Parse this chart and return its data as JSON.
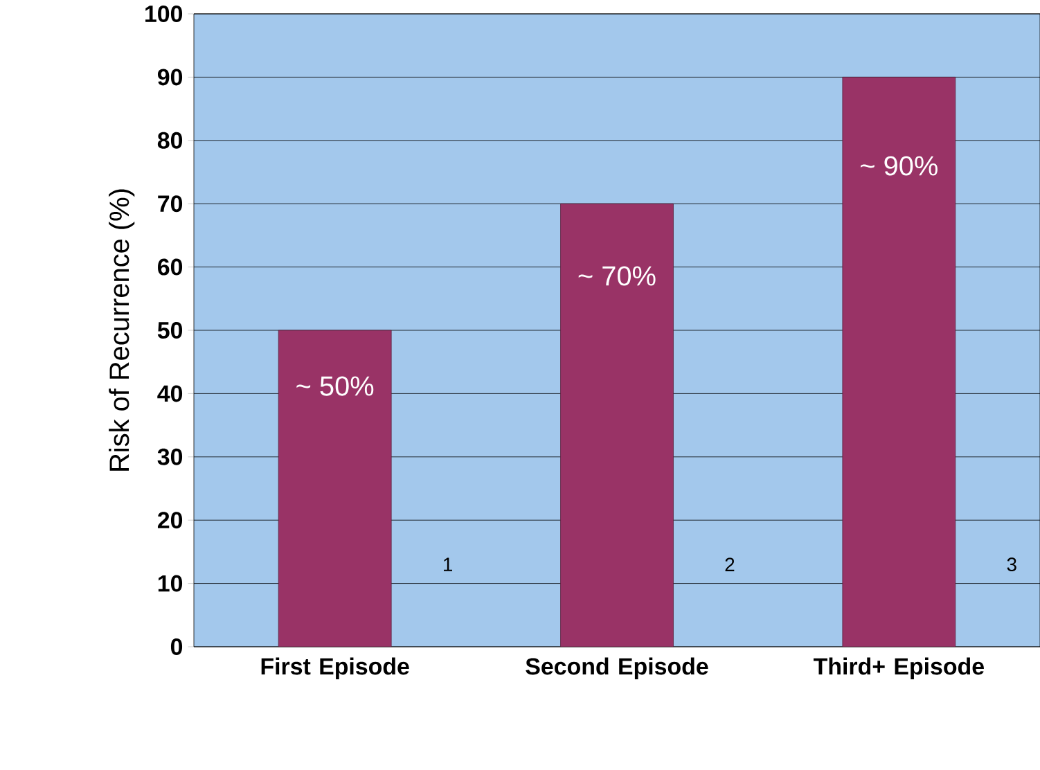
{
  "chart_data": {
    "type": "bar",
    "ylabel": "Risk of Recurrence (%)",
    "categories": [
      "First Episode",
      "Second Episode",
      "Third+ Episode"
    ],
    "values": [
      50,
      70,
      90
    ],
    "color": "#993366",
    "value_labels": [
      "~ 50%",
      "~ 70%",
      "~ 90%"
    ],
    "ylim": [
      0,
      100
    ],
    "yticks": [
      0,
      10,
      20,
      30,
      40,
      50,
      60,
      70,
      80,
      90,
      100
    ],
    "grid": "y",
    "annotations": [
      "1",
      "2",
      "3"
    ]
  }
}
